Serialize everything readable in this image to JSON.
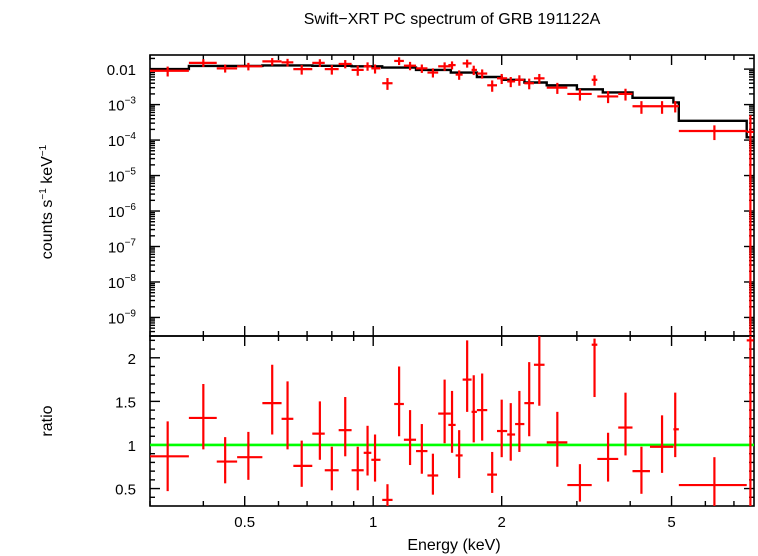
{
  "chart_data": {
    "type": "scatter",
    "title": "Swift−XRT PC spectrum of GRB 191122A",
    "xlabel": "Energy (keV)",
    "xscale": "log",
    "xlim": [
      0.3,
      7.8
    ],
    "x_ticks": [
      {
        "value": 0.5,
        "label": "0.5"
      },
      {
        "value": 1,
        "label": "1"
      },
      {
        "value": 2,
        "label": "2"
      },
      {
        "value": 5,
        "label": "5"
      }
    ],
    "top_panel": {
      "ylabel": {
        "base": "counts s",
        "exp1": "−1",
        "mid": " keV",
        "exp2": "−1"
      },
      "yscale": "log",
      "ylim": [
        3e-10,
        0.025
      ],
      "y_ticks": [
        {
          "value": 0.01,
          "label": "0.01"
        },
        {
          "value": 0.001,
          "base": "10",
          "exp": "−3"
        },
        {
          "value": 0.0001,
          "base": "10",
          "exp": "−4"
        },
        {
          "value": 1e-05,
          "base": "10",
          "exp": "−5"
        },
        {
          "value": 1e-06,
          "base": "10",
          "exp": "−6"
        },
        {
          "value": 1e-07,
          "base": "10",
          "exp": "−7"
        },
        {
          "value": 1e-08,
          "base": "10",
          "exp": "−8"
        },
        {
          "value": 1e-09,
          "base": "10",
          "exp": "−9"
        }
      ],
      "data_color": "#ff0000",
      "model_color": "#000000",
      "data": [
        {
          "x": 0.33,
          "xlo": 0.3,
          "xhi": 0.37,
          "y": 0.009,
          "ylo": 0.0062,
          "yhi": 0.0118
        },
        {
          "x": 0.4,
          "xlo": 0.37,
          "xhi": 0.43,
          "y": 0.015,
          "ylo": 0.0115,
          "yhi": 0.019
        },
        {
          "x": 0.45,
          "xlo": 0.43,
          "xhi": 0.48,
          "y": 0.0105,
          "ylo": 0.008,
          "yhi": 0.0135
        },
        {
          "x": 0.51,
          "xlo": 0.48,
          "xhi": 0.55,
          "y": 0.012,
          "ylo": 0.0092,
          "yhi": 0.015
        },
        {
          "x": 0.58,
          "xlo": 0.55,
          "xhi": 0.61,
          "y": 0.0165,
          "ylo": 0.0125,
          "yhi": 0.0205
        },
        {
          "x": 0.63,
          "xlo": 0.61,
          "xhi": 0.65,
          "y": 0.0155,
          "ylo": 0.0118,
          "yhi": 0.0195
        },
        {
          "x": 0.68,
          "xlo": 0.65,
          "xhi": 0.72,
          "y": 0.01,
          "ylo": 0.007,
          "yhi": 0.013
        },
        {
          "x": 0.75,
          "xlo": 0.72,
          "xhi": 0.77,
          "y": 0.015,
          "ylo": 0.0115,
          "yhi": 0.019
        },
        {
          "x": 0.8,
          "xlo": 0.77,
          "xhi": 0.83,
          "y": 0.01,
          "ylo": 0.007,
          "yhi": 0.013
        },
        {
          "x": 0.86,
          "xlo": 0.83,
          "xhi": 0.89,
          "y": 0.014,
          "ylo": 0.0105,
          "yhi": 0.018
        },
        {
          "x": 0.92,
          "xlo": 0.89,
          "xhi": 0.95,
          "y": 0.0095,
          "ylo": 0.0065,
          "yhi": 0.0125
        },
        {
          "x": 0.97,
          "xlo": 0.95,
          "xhi": 0.99,
          "y": 0.012,
          "ylo": 0.009,
          "yhi": 0.0155
        },
        {
          "x": 1.01,
          "xlo": 0.99,
          "xhi": 1.04,
          "y": 0.0105,
          "ylo": 0.0075,
          "yhi": 0.0135
        },
        {
          "x": 1.08,
          "xlo": 1.05,
          "xhi": 1.11,
          "y": 0.004,
          "ylo": 0.0026,
          "yhi": 0.0056
        },
        {
          "x": 1.15,
          "xlo": 1.12,
          "xhi": 1.18,
          "y": 0.017,
          "ylo": 0.013,
          "yhi": 0.0215
        },
        {
          "x": 1.22,
          "xlo": 1.18,
          "xhi": 1.26,
          "y": 0.0125,
          "ylo": 0.0093,
          "yhi": 0.016
        },
        {
          "x": 1.3,
          "xlo": 1.26,
          "xhi": 1.34,
          "y": 0.0105,
          "ylo": 0.0078,
          "yhi": 0.0135
        },
        {
          "x": 1.38,
          "xlo": 1.34,
          "xhi": 1.42,
          "y": 0.008,
          "ylo": 0.0058,
          "yhi": 0.0105
        },
        {
          "x": 1.47,
          "xlo": 1.42,
          "xhi": 1.52,
          "y": 0.012,
          "ylo": 0.009,
          "yhi": 0.0155
        },
        {
          "x": 1.53,
          "xlo": 1.5,
          "xhi": 1.56,
          "y": 0.013,
          "ylo": 0.0098,
          "yhi": 0.0165
        },
        {
          "x": 1.59,
          "xlo": 1.56,
          "xhi": 1.62,
          "y": 0.007,
          "ylo": 0.005,
          "yhi": 0.0092
        },
        {
          "x": 1.66,
          "xlo": 1.62,
          "xhi": 1.7,
          "y": 0.0145,
          "ylo": 0.011,
          "yhi": 0.0185
        },
        {
          "x": 1.72,
          "xlo": 1.7,
          "xhi": 1.75,
          "y": 0.0095,
          "ylo": 0.0068,
          "yhi": 0.0125
        },
        {
          "x": 1.8,
          "xlo": 1.75,
          "xhi": 1.85,
          "y": 0.0075,
          "ylo": 0.0054,
          "yhi": 0.0098
        },
        {
          "x": 1.9,
          "xlo": 1.85,
          "xhi": 1.95,
          "y": 0.0035,
          "ylo": 0.0023,
          "yhi": 0.0048
        },
        {
          "x": 2.0,
          "xlo": 1.95,
          "xhi": 2.06,
          "y": 0.0055,
          "ylo": 0.0038,
          "yhi": 0.0073
        },
        {
          "x": 2.1,
          "xlo": 2.06,
          "xhi": 2.15,
          "y": 0.0045,
          "ylo": 0.0031,
          "yhi": 0.006
        },
        {
          "x": 2.2,
          "xlo": 2.15,
          "xhi": 2.26,
          "y": 0.005,
          "ylo": 0.0034,
          "yhi": 0.0067
        },
        {
          "x": 2.32,
          "xlo": 2.26,
          "xhi": 2.38,
          "y": 0.004,
          "ylo": 0.0027,
          "yhi": 0.0054
        },
        {
          "x": 2.45,
          "xlo": 2.38,
          "xhi": 2.52,
          "y": 0.0055,
          "ylo": 0.0038,
          "yhi": 0.0073
        },
        {
          "x": 2.7,
          "xlo": 2.55,
          "xhi": 2.85,
          "y": 0.003,
          "ylo": 0.002,
          "yhi": 0.0041
        },
        {
          "x": 3.05,
          "xlo": 2.85,
          "xhi": 3.25,
          "y": 0.002,
          "ylo": 0.0013,
          "yhi": 0.0028
        },
        {
          "x": 3.3,
          "xlo": 3.25,
          "xhi": 3.35,
          "y": 0.005,
          "ylo": 0.0034,
          "yhi": 0.0067
        },
        {
          "x": 3.55,
          "xlo": 3.35,
          "xhi": 3.75,
          "y": 0.0017,
          "ylo": 0.0011,
          "yhi": 0.0024
        },
        {
          "x": 3.9,
          "xlo": 3.75,
          "xhi": 4.05,
          "y": 0.002,
          "ylo": 0.0013,
          "yhi": 0.0028
        },
        {
          "x": 4.25,
          "xlo": 4.05,
          "xhi": 4.45,
          "y": 0.0009,
          "ylo": 0.00055,
          "yhi": 0.00125
        },
        {
          "x": 4.75,
          "xlo": 4.45,
          "xhi": 5.05,
          "y": 0.0009,
          "ylo": 0.00055,
          "yhi": 0.00125
        },
        {
          "x": 5.1,
          "xlo": 5.05,
          "xhi": 5.2,
          "y": 0.0009,
          "ylo": 0.0006,
          "yhi": 0.00125
        },
        {
          "x": 6.3,
          "xlo": 5.2,
          "xhi": 7.5,
          "y": 0.00018,
          "ylo": 0.0001,
          "yhi": 0.00026
        },
        {
          "x": 7.65,
          "xlo": 7.5,
          "xhi": 7.78,
          "y": 0.00017,
          "ylo": 1e-10,
          "yhi": 0.0005
        }
      ],
      "model_steps": [
        {
          "xlo": 0.3,
          "xhi": 0.37,
          "y": 0.01
        },
        {
          "xlo": 0.37,
          "xhi": 0.55,
          "y": 0.0123
        },
        {
          "xlo": 0.55,
          "xhi": 0.72,
          "y": 0.0127
        },
        {
          "xlo": 0.72,
          "xhi": 0.89,
          "y": 0.0124
        },
        {
          "xlo": 0.89,
          "xhi": 1.05,
          "y": 0.012
        },
        {
          "xlo": 1.05,
          "xhi": 1.26,
          "y": 0.011
        },
        {
          "xlo": 1.26,
          "xhi": 1.52,
          "y": 0.0095
        },
        {
          "xlo": 1.52,
          "xhi": 1.75,
          "y": 0.008
        },
        {
          "xlo": 1.75,
          "xhi": 2.0,
          "y": 0.006
        },
        {
          "xlo": 2.0,
          "xhi": 2.26,
          "y": 0.005
        },
        {
          "xlo": 2.26,
          "xhi": 2.55,
          "y": 0.0042
        },
        {
          "xlo": 2.55,
          "xhi": 3.0,
          "y": 0.0035
        },
        {
          "xlo": 3.0,
          "xhi": 3.45,
          "y": 0.0027
        },
        {
          "xlo": 3.45,
          "xhi": 4.05,
          "y": 0.0022
        },
        {
          "xlo": 4.05,
          "xhi": 5.05,
          "y": 0.00155
        },
        {
          "xlo": 5.05,
          "xhi": 5.2,
          "y": 0.00115
        },
        {
          "xlo": 5.2,
          "xhi": 7.5,
          "y": 0.00035
        },
        {
          "xlo": 7.5,
          "xhi": 7.78,
          "y": 0.00012
        }
      ]
    },
    "bottom_panel": {
      "ylabel": "ratio",
      "yscale": "linear",
      "ylim": [
        0.3,
        2.25
      ],
      "y_ticks": [
        {
          "value": 0.5,
          "label": "0.5"
        },
        {
          "value": 1,
          "label": "1"
        },
        {
          "value": 1.5,
          "label": "1.5"
        },
        {
          "value": 2,
          "label": "2"
        }
      ],
      "reference_line": {
        "y": 1,
        "color": "#00ff00"
      },
      "data": [
        {
          "x": 0.33,
          "xlo": 0.3,
          "xhi": 0.37,
          "y": 0.87,
          "ylo": 0.47,
          "yhi": 1.27
        },
        {
          "x": 0.4,
          "xlo": 0.37,
          "xhi": 0.43,
          "y": 1.31,
          "ylo": 0.95,
          "yhi": 1.7
        },
        {
          "x": 0.45,
          "xlo": 0.43,
          "xhi": 0.48,
          "y": 0.81,
          "ylo": 0.56,
          "yhi": 1.09
        },
        {
          "x": 0.51,
          "xlo": 0.48,
          "xhi": 0.55,
          "y": 0.86,
          "ylo": 0.6,
          "yhi": 1.15
        },
        {
          "x": 0.58,
          "xlo": 0.55,
          "xhi": 0.61,
          "y": 1.48,
          "ylo": 1.12,
          "yhi": 1.92
        },
        {
          "x": 0.63,
          "xlo": 0.61,
          "xhi": 0.65,
          "y": 1.3,
          "ylo": 0.95,
          "yhi": 1.73
        },
        {
          "x": 0.68,
          "xlo": 0.65,
          "xhi": 0.72,
          "y": 0.76,
          "ylo": 0.52,
          "yhi": 1.05
        },
        {
          "x": 0.75,
          "xlo": 0.72,
          "xhi": 0.77,
          "y": 1.13,
          "ylo": 0.83,
          "yhi": 1.5
        },
        {
          "x": 0.8,
          "xlo": 0.77,
          "xhi": 0.83,
          "y": 0.71,
          "ylo": 0.48,
          "yhi": 0.98
        },
        {
          "x": 0.86,
          "xlo": 0.83,
          "xhi": 0.89,
          "y": 1.17,
          "ylo": 0.87,
          "yhi": 1.55
        },
        {
          "x": 0.92,
          "xlo": 0.89,
          "xhi": 0.95,
          "y": 0.71,
          "ylo": 0.48,
          "yhi": 0.98
        },
        {
          "x": 0.97,
          "xlo": 0.95,
          "xhi": 0.99,
          "y": 0.91,
          "ylo": 0.65,
          "yhi": 1.22
        },
        {
          "x": 1.01,
          "xlo": 0.99,
          "xhi": 1.04,
          "y": 0.83,
          "ylo": 0.58,
          "yhi": 1.12
        },
        {
          "x": 1.08,
          "xlo": 1.05,
          "xhi": 1.11,
          "y": 0.37,
          "ylo": 0.3,
          "yhi": 0.55
        },
        {
          "x": 1.15,
          "xlo": 1.12,
          "xhi": 1.18,
          "y": 1.47,
          "ylo": 1.1,
          "yhi": 1.9
        },
        {
          "x": 1.22,
          "xlo": 1.18,
          "xhi": 1.26,
          "y": 1.06,
          "ylo": 0.77,
          "yhi": 1.4
        },
        {
          "x": 1.3,
          "xlo": 1.26,
          "xhi": 1.34,
          "y": 0.93,
          "ylo": 0.67,
          "yhi": 1.24
        },
        {
          "x": 1.38,
          "xlo": 1.34,
          "xhi": 1.42,
          "y": 0.65,
          "ylo": 0.43,
          "yhi": 0.9
        },
        {
          "x": 1.47,
          "xlo": 1.42,
          "xhi": 1.52,
          "y": 1.36,
          "ylo": 1.02,
          "yhi": 1.75
        },
        {
          "x": 1.53,
          "xlo": 1.5,
          "xhi": 1.56,
          "y": 1.23,
          "ylo": 0.91,
          "yhi": 1.62
        },
        {
          "x": 1.59,
          "xlo": 1.56,
          "xhi": 1.62,
          "y": 0.88,
          "ylo": 0.62,
          "yhi": 1.17
        },
        {
          "x": 1.66,
          "xlo": 1.62,
          "xhi": 1.7,
          "y": 1.75,
          "ylo": 1.38,
          "yhi": 2.2
        },
        {
          "x": 1.72,
          "xlo": 1.7,
          "xhi": 1.75,
          "y": 1.38,
          "ylo": 1.03,
          "yhi": 1.8
        },
        {
          "x": 1.8,
          "xlo": 1.75,
          "xhi": 1.85,
          "y": 1.4,
          "ylo": 1.05,
          "yhi": 1.82
        },
        {
          "x": 1.9,
          "xlo": 1.85,
          "xhi": 1.95,
          "y": 0.66,
          "ylo": 0.45,
          "yhi": 0.92
        },
        {
          "x": 2.0,
          "xlo": 1.95,
          "xhi": 2.06,
          "y": 1.16,
          "ylo": 0.86,
          "yhi": 1.52
        },
        {
          "x": 2.1,
          "xlo": 2.06,
          "xhi": 2.15,
          "y": 1.12,
          "ylo": 0.82,
          "yhi": 1.48
        },
        {
          "x": 2.2,
          "xlo": 2.15,
          "xhi": 2.26,
          "y": 1.24,
          "ylo": 0.92,
          "yhi": 1.62
        },
        {
          "x": 2.32,
          "xlo": 2.26,
          "xhi": 2.38,
          "y": 1.48,
          "ylo": 1.1,
          "yhi": 1.95
        },
        {
          "x": 2.45,
          "xlo": 2.38,
          "xhi": 2.52,
          "y": 1.92,
          "ylo": 1.45,
          "yhi": 2.25
        },
        {
          "x": 2.7,
          "xlo": 2.55,
          "xhi": 2.85,
          "y": 1.03,
          "ylo": 0.75,
          "yhi": 1.38
        },
        {
          "x": 3.05,
          "xlo": 2.85,
          "xhi": 3.25,
          "y": 0.54,
          "ylo": 0.35,
          "yhi": 0.78
        },
        {
          "x": 3.3,
          "xlo": 3.25,
          "xhi": 3.35,
          "y": 2.15,
          "ylo": 1.55,
          "yhi": 2.22
        },
        {
          "x": 3.55,
          "xlo": 3.35,
          "xhi": 3.75,
          "y": 0.84,
          "ylo": 0.58,
          "yhi": 1.14
        },
        {
          "x": 3.9,
          "xlo": 3.75,
          "xhi": 4.05,
          "y": 1.2,
          "ylo": 0.88,
          "yhi": 1.6
        },
        {
          "x": 4.25,
          "xlo": 4.05,
          "xhi": 4.45,
          "y": 0.7,
          "ylo": 0.44,
          "yhi": 0.98
        },
        {
          "x": 4.75,
          "xlo": 4.45,
          "xhi": 5.05,
          "y": 0.98,
          "ylo": 0.68,
          "yhi": 1.34
        },
        {
          "x": 5.1,
          "xlo": 5.05,
          "xhi": 5.2,
          "y": 1.18,
          "ylo": 0.86,
          "yhi": 1.6
        },
        {
          "x": 6.3,
          "xlo": 5.2,
          "xhi": 7.5,
          "y": 0.54,
          "ylo": 0.3,
          "yhi": 0.86
        },
        {
          "x": 7.65,
          "xlo": 7.5,
          "xhi": 7.78,
          "y": 2.2,
          "ylo": 0.3,
          "yhi": 2.25
        }
      ]
    }
  }
}
